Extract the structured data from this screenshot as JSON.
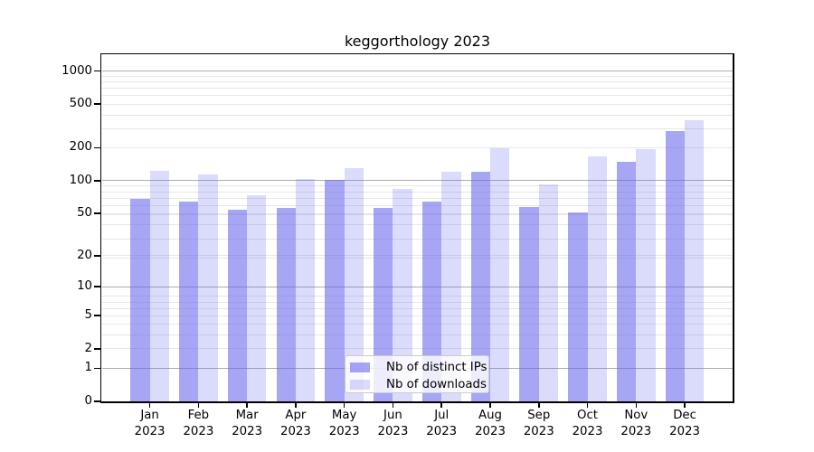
{
  "chart_data": {
    "type": "bar",
    "title": "keggorthology 2023",
    "x": {
      "categories": [
        "Jan",
        "Feb",
        "Mar",
        "Apr",
        "May",
        "Jun",
        "Jul",
        "Aug",
        "Sep",
        "Oct",
        "Nov",
        "Dec"
      ],
      "year_sub_label": "2023"
    },
    "series": [
      {
        "name": "Nb of distinct IPs",
        "color": "#6666ee",
        "alpha": 0.58,
        "values": [
          68,
          64,
          54,
          56,
          101,
          56,
          64,
          120,
          57,
          51,
          148,
          285
        ]
      },
      {
        "name": "Nb of downloads",
        "color": "#6666ee",
        "alpha": 0.235,
        "values": [
          122,
          114,
          73,
          104,
          130,
          84,
          120,
          197,
          92,
          167,
          193,
          355
        ]
      }
    ],
    "yscale": "log(value+1)",
    "ytick_values": [
      0,
      1,
      2,
      5,
      10,
      20,
      50,
      100,
      200,
      500,
      1000
    ],
    "ytick_labels": [
      "0",
      "1",
      "2",
      "5",
      "10",
      "20",
      "50",
      "100",
      "200",
      "500",
      "1000"
    ],
    "ylim": [
      0,
      1435
    ],
    "grid": {
      "which": "both",
      "major_at": [
        1,
        10,
        100,
        1000
      ]
    },
    "legend": {
      "location": "lower center"
    }
  },
  "colors": {
    "background": "#ffffff",
    "spine": "#000000",
    "grid_major": "#adadad",
    "grid_minor": "#e7e7e7",
    "text": "#000000",
    "legend_border": "#cccccc"
  }
}
